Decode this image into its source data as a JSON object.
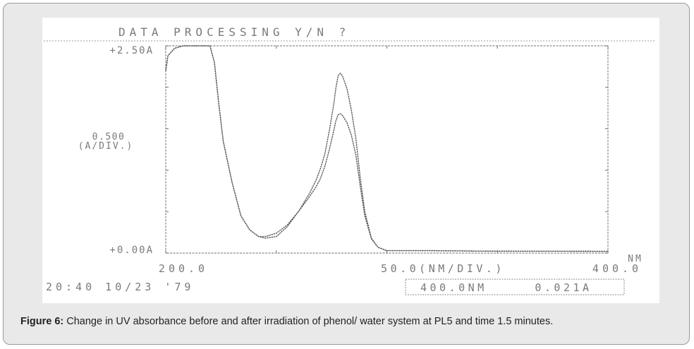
{
  "figure": {
    "caption_label": "Figure 6:",
    "caption_text": " Change in UV absorbance before and after irradiation of phenol/ water system at PL5 and time 1.5 minutes."
  },
  "instrument": {
    "prompt": "DATA PROCESSING Y/N ?",
    "y_top_label": "+2.50A",
    "y_bottom_label": "+0.00A",
    "y_scale_value": "0.500",
    "y_scale_unit": "(A/DIV.)",
    "x_start_label": "200.0",
    "x_scale_label": "50.0(NM/DIV.)",
    "x_end_label": "400.0",
    "x_unit": "NM",
    "timestamp": "20:40 10/23 '79",
    "cursor_readout": "400.0NM     0.021A"
  },
  "colors": {
    "trace": "#555555",
    "frame": "#888888",
    "text": "#7a7a7a",
    "card": "#e9e9e9"
  },
  "chart_data": {
    "type": "line",
    "title": "",
    "xlabel": "NM",
    "ylabel": "(A/DIV.)",
    "xlim": [
      200,
      400
    ],
    "ylim": [
      0,
      2.5
    ],
    "x_tick_step": 50,
    "y_tick_step": 0.5,
    "series": [
      {
        "x": [
          200,
          201,
          204,
          208,
          220,
          222,
          224,
          226,
          230,
          234,
          238,
          242,
          245,
          250,
          255,
          260,
          265,
          268,
          270,
          272,
          274,
          276,
          277,
          278,
          279,
          280,
          282,
          284,
          286,
          288,
          290,
          293,
          296,
          300,
          310,
          320,
          340,
          360,
          380,
          400
        ],
        "y": [
          2.2,
          2.38,
          2.47,
          2.5,
          2.5,
          2.3,
          1.8,
          1.35,
          0.85,
          0.45,
          0.28,
          0.2,
          0.18,
          0.2,
          0.32,
          0.5,
          0.72,
          0.88,
          1.02,
          1.2,
          1.48,
          1.8,
          2.0,
          2.14,
          2.17,
          2.13,
          1.98,
          1.72,
          1.38,
          0.9,
          0.5,
          0.18,
          0.07,
          0.03,
          0.03,
          0.03,
          0.025,
          0.022,
          0.022,
          0.021
        ]
      },
      {
        "x": [
          200,
          201,
          204,
          208,
          220,
          222,
          224,
          226,
          230,
          234,
          238,
          242,
          245,
          250,
          255,
          260,
          265,
          268,
          270,
          272,
          274,
          276,
          277,
          278,
          279,
          280,
          282,
          284,
          286,
          288,
          290,
          293,
          296,
          300,
          310,
          320,
          340,
          360,
          380,
          400
        ],
        "y": [
          2.2,
          2.38,
          2.47,
          2.5,
          2.5,
          2.3,
          1.8,
          1.35,
          0.85,
          0.45,
          0.28,
          0.2,
          0.2,
          0.24,
          0.34,
          0.5,
          0.68,
          0.8,
          0.9,
          1.05,
          1.25,
          1.48,
          1.6,
          1.67,
          1.68,
          1.66,
          1.57,
          1.42,
          1.18,
          0.8,
          0.45,
          0.17,
          0.07,
          0.03,
          0.03,
          0.03,
          0.025,
          0.022,
          0.022,
          0.021
        ]
      }
    ]
  }
}
